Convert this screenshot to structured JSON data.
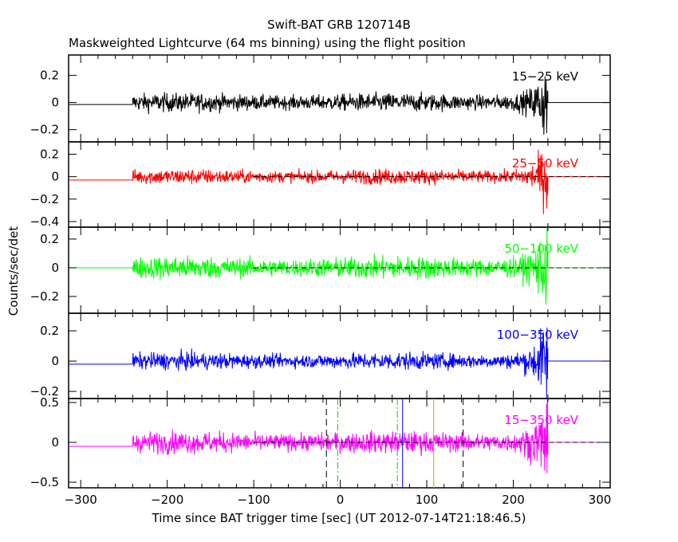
{
  "chart_data": {
    "type": "line",
    "title": "Swift-BAT GRB 120714B",
    "subtitle": "Maskweighted Lightcurve (64 ms binning) using the flight position",
    "xlabel": "Time since BAT trigger time [sec] (UT 2012-07-14T21:18:46.5)",
    "ylabel": "Counts/sec/det",
    "xlim": [
      -314,
      312
    ],
    "xticks": [
      -300,
      -200,
      -100,
      0,
      100,
      200,
      300
    ],
    "data_span": [
      -240,
      240
    ],
    "panels": [
      {
        "band": "15-25 keV",
        "color": "#000000",
        "ylim": [
          -0.29,
          0.35
        ],
        "yticks": [
          0.2,
          0,
          -0.2
        ],
        "ytick_labels": [
          "0.2",
          "0",
          "-0.2"
        ],
        "pre_level": -0.015,
        "noise": 0.03,
        "end_spike": 0.15,
        "zero_line": false
      },
      {
        "band": "25-50 keV",
        "color": "#ff0000",
        "ylim": [
          -0.45,
          0.31
        ],
        "yticks": [
          0.2,
          0,
          -0.2,
          -0.4
        ],
        "ytick_labels": [
          "0.2",
          "0",
          "-0.2",
          "-0.4"
        ],
        "pre_level": -0.03,
        "noise": 0.03,
        "end_spike": 0.15,
        "zero_line": true
      },
      {
        "band": "50-100 keV",
        "color": "#00ff00",
        "ylim": [
          -0.317,
          0.283
        ],
        "yticks": [
          0.2,
          0,
          -0.2
        ],
        "ytick_labels": [
          "0.2",
          "0",
          "-0.2"
        ],
        "pre_level": 0.0,
        "noise": 0.035,
        "end_spike": 0.15,
        "zero_line": true
      },
      {
        "band": "100-350 keV",
        "color": "#0000ff",
        "ylim": [
          -0.247,
          0.316
        ],
        "yticks": [
          0.2,
          0,
          -0.2
        ],
        "ytick_labels": [
          "0.2",
          "0",
          "-0.2"
        ],
        "pre_level": -0.02,
        "noise": 0.025,
        "end_spike": 0.15,
        "zero_line": false
      },
      {
        "band": "15-350 keV",
        "color": "#ff00ff",
        "ylim": [
          -0.57,
          0.55
        ],
        "yticks": [
          0.5,
          0,
          -0.5
        ],
        "ytick_labels": [
          "0.5",
          "0",
          "-0.5"
        ],
        "pre_level": -0.05,
        "noise": 0.06,
        "end_spike": 0.3,
        "zero_line": true
      }
    ],
    "markers": [
      {
        "x": -16,
        "color": "#000000",
        "style": "dashed"
      },
      {
        "x": 142,
        "color": "#000000",
        "style": "dashed"
      },
      {
        "x": -3,
        "color": "#00cc00",
        "style": "dashdot"
      },
      {
        "x": 66,
        "color": "#00cc00",
        "style": "dashdot"
      },
      {
        "x": 72,
        "color": "#0000ff",
        "style": "solid"
      },
      {
        "x": 108,
        "color": "#ff8c00",
        "style": "solid"
      }
    ]
  }
}
